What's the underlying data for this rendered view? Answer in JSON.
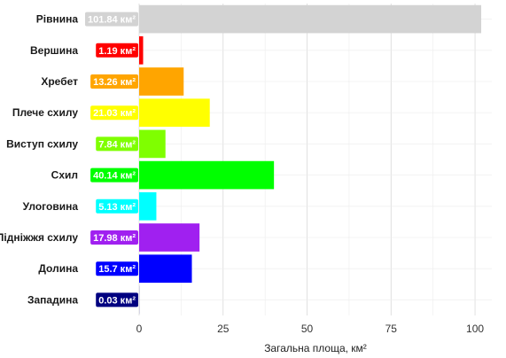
{
  "chart_data": {
    "type": "bar",
    "orientation": "horizontal",
    "categories": [
      "Рівнина",
      "Вершина",
      "Хребет",
      "Плече схилу",
      "Виступ схилу",
      "Схил",
      "Улоговина",
      "Підніжжя схилу",
      "Долина",
      "Западина"
    ],
    "values": [
      101.84,
      1.19,
      13.26,
      21.03,
      7.84,
      40.14,
      5.13,
      17.98,
      15.7,
      0.03
    ],
    "value_labels": [
      "101.84 км²",
      "1.19 км²",
      "13.26 км²",
      "21.03 км²",
      "7.84 км²",
      "40.14 км²",
      "5.13 км²",
      "17.98 км²",
      "15.7 км²",
      "0.03 км²"
    ],
    "colors": [
      "#d3d3d3",
      "#ff0000",
      "#ffa500",
      "#ffff00",
      "#7fff00",
      "#00ff00",
      "#00ffff",
      "#a020f0",
      "#0000ff",
      "#000080"
    ],
    "xlabel": "Загальна площа, км²",
    "ylabel": "",
    "title": "",
    "xlim": [
      0,
      105
    ],
    "x_ticks": [
      0,
      25,
      50,
      75,
      100
    ],
    "grid": true,
    "legend": "none"
  }
}
